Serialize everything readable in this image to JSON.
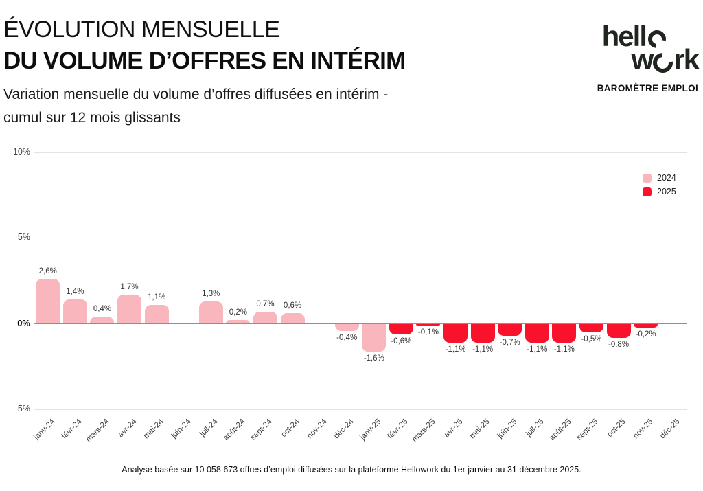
{
  "header": {
    "title_line1": "ÉVOLUTION MENSUELLE",
    "title_line2": "DU VOLUME D’OFFRES EN INTÉRIM",
    "subtitle_line1": "Variation mensuelle du volume d’offres diffusées en intérim -",
    "subtitle_line2": "cumul sur 12 mois glissants"
  },
  "logo": {
    "word_part1": "hell",
    "word_part2_pre": "w",
    "word_part2_post": "rk",
    "tagline": "BAROMÈTRE EMPLOI",
    "color": "#20261f"
  },
  "legend": {
    "position": "top-right",
    "items": [
      {
        "label": "2024",
        "color": "#F9B6BD"
      },
      {
        "label": "2025",
        "color": "#F8122B"
      }
    ]
  },
  "chart_data": {
    "type": "bar",
    "title": "",
    "xlabel": "",
    "ylabel": "",
    "ylim": [
      -5,
      10
    ],
    "grid": true,
    "legend_position": "top-right",
    "categories": [
      "janv-24",
      "févr-24",
      "mars-24",
      "avr-24",
      "mai-24",
      "juin-24",
      "juil-24",
      "août-24",
      "sept-24",
      "oct-24",
      "nov-24",
      "déc-24",
      "janv-25",
      "févr-25",
      "mars-25",
      "avr-25",
      "mai-25",
      "juin-25",
      "juil-25",
      "août-25",
      "sept-25",
      "oct-25",
      "nov-25",
      "déc-25"
    ],
    "values": [
      2.6,
      1.4,
      0.4,
      1.7,
      1.1,
      0,
      1.3,
      0.2,
      0.7,
      0.6,
      0,
      -0.4,
      -1.6,
      -0.6,
      -0.1,
      -1.1,
      -1.1,
      -0.7,
      -1.1,
      -1.1,
      -0.5,
      -0.8,
      -0.2,
      0
    ],
    "value_labels": [
      "2,6%",
      "1,4%",
      "0,4%",
      "1,7%",
      "1,1%",
      null,
      "1,3%",
      "0,2%",
      "0,7%",
      "0,6%",
      null,
      "-0,4%",
      "-1,6%",
      "-0,6%",
      "-0,1%",
      "-1,1%",
      "-1,1%",
      "-0,7%",
      "-1,1%",
      "-1,1%",
      "-0,5%",
      "-0,8%",
      "-0,2%",
      null
    ],
    "bar_color_keys": [
      "pink",
      "pink",
      "pink",
      "pink",
      "pink",
      "pink",
      "pink",
      "pink",
      "pink",
      "pink",
      "pink",
      "pink",
      "pink",
      "red",
      "red",
      "red",
      "red",
      "red",
      "red",
      "red",
      "red",
      "red",
      "red",
      "red"
    ],
    "colors": {
      "pink": "#F9B6BD",
      "red": "#F8122B"
    },
    "yticks": [
      {
        "value": 10,
        "label": "10%",
        "strong": false
      },
      {
        "value": 5,
        "label": "5%",
        "strong": false
      },
      {
        "value": 0,
        "label": "0%",
        "strong": true
      },
      {
        "value": -5,
        "label": "-5%",
        "strong": false
      }
    ]
  },
  "footer": {
    "note": "Analyse basée sur 10 058 673 offres d’emploi diffusées sur la plateforme Hellowork du 1er janvier au 31 décembre 2025."
  }
}
